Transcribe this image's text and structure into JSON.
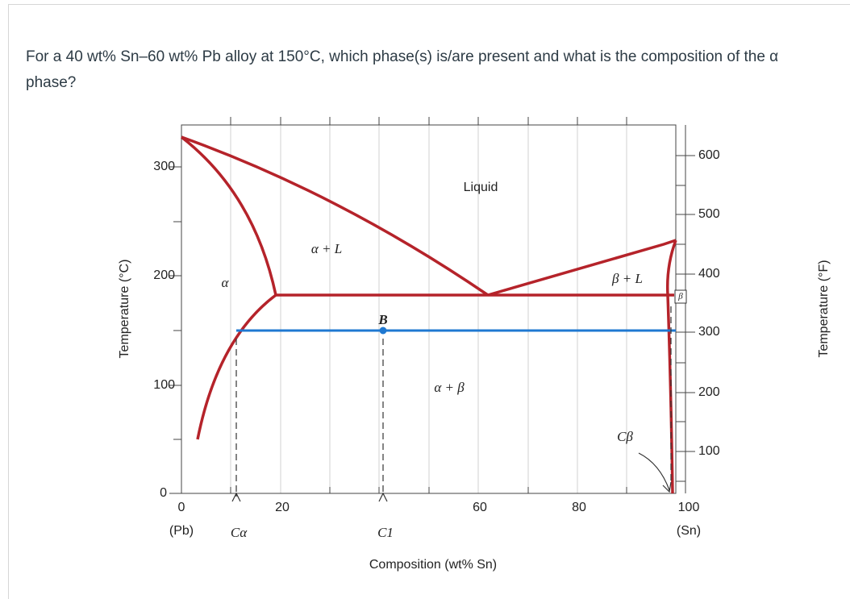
{
  "question": "For a 40 wt% Sn–60 wt% Pb alloy at 150°C, which phase(s) is/are present and what is the composition of the α phase?",
  "diagram": {
    "y_axis_label": "Temperature (°C)",
    "y2_axis_label": "Temperature (°F)",
    "x_axis_label": "Composition (wt% Sn)",
    "y_ticks": [
      "0",
      "100",
      "200",
      "300"
    ],
    "y2_ticks": [
      "100",
      "200",
      "300",
      "400",
      "500",
      "600"
    ],
    "x_ticks": [
      "0",
      "20",
      "60",
      "80",
      "100"
    ],
    "x_end_labels": [
      "(Pb)",
      "(Sn)"
    ],
    "regions": [
      "Liquid",
      "α + L",
      "α",
      "β + L",
      "β",
      "α + β"
    ],
    "markers": [
      "B",
      "Cα",
      "C1",
      "Cβ"
    ]
  }
}
